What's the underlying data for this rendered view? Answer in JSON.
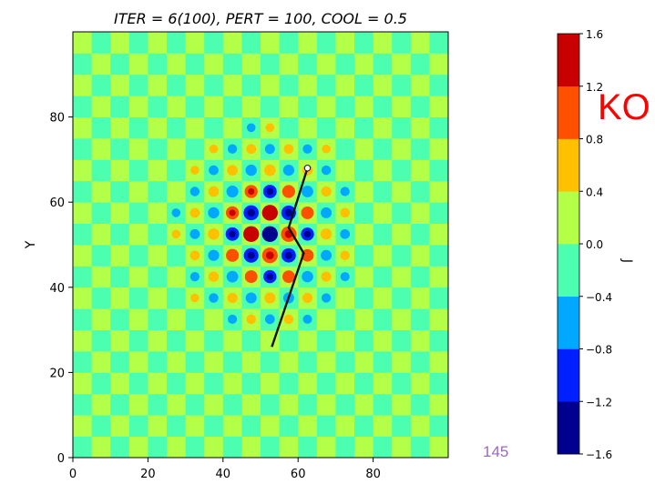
{
  "chart_data": {
    "type": "heatmap",
    "title": "ITER = 6(100), PERT = 100, COOL = 0.5",
    "xlabel": "",
    "ylabel": "Y",
    "xlim": [
      0,
      100
    ],
    "ylim": [
      0,
      100
    ],
    "x_ticks": [
      "0",
      "20",
      "40",
      "60",
      "80"
    ],
    "y_ticks": [
      "0",
      "20",
      "40",
      "60",
      "80"
    ],
    "grid": false,
    "field": {
      "description_pattern": "checkerboard",
      "cell_size": 5,
      "peak_center": [
        52,
        53
      ],
      "peak_value": 1.6,
      "trough_value": -1.6
    },
    "path": {
      "name": "",
      "points": [
        [
          53,
          26
        ],
        [
          61.5,
          48
        ],
        [
          57.5,
          54
        ],
        [
          62.5,
          68
        ]
      ]
    },
    "colorbar": {
      "label": "J",
      "levels": [
        -1.6,
        -1.2,
        -0.8,
        -0.4,
        0.0,
        0.4,
        0.8,
        1.2,
        1.6
      ],
      "tick_labels": [
        "−1.6",
        "−1.2",
        "−0.8",
        "−0.4",
        "0.0",
        "0.4",
        "0.8",
        "1.2",
        "1.6"
      ],
      "colors": [
        "#00008f",
        "#0020ff",
        "#00a8ff",
        "#4cffb0",
        "#b4ff48",
        "#ffc000",
        "#ff5000",
        "#c80000"
      ]
    }
  },
  "annotations": {
    "ko_text": "KO",
    "page_number": "145"
  },
  "colors": {
    "light_green": "#b4ff48",
    "mint": "#4cffb0",
    "path": "#111111"
  }
}
